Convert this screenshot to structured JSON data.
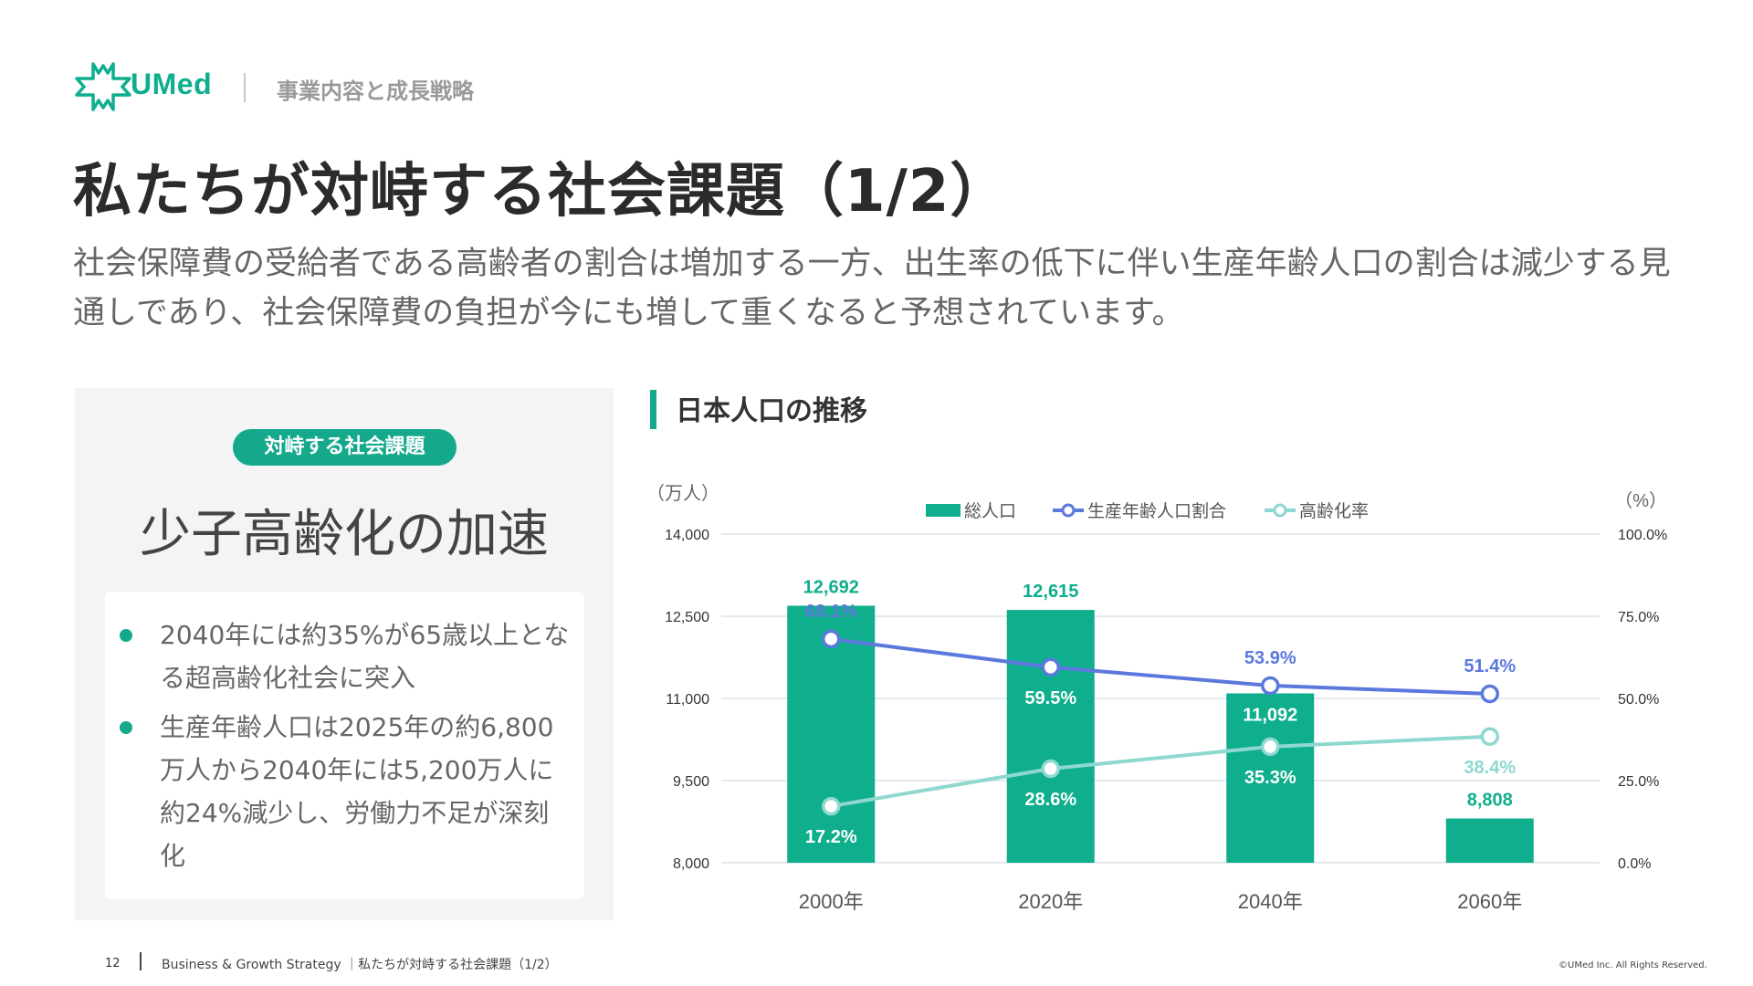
{
  "header": {
    "brand": "UMed",
    "section": "事業内容と成長戦略",
    "logo_icon": "umed-cross-logo-icon",
    "brand_color": "#0eae8f"
  },
  "title": "私たちが対峙する社会課題（1/2）",
  "lead": "社会保障費の受給者である高齢者の割合は増加する一方、出生率の低下に伴い生産年齢人口の割合は減少する見通しであり、社会保障費の負担が今にも増して重くなると予想されています。",
  "panel": {
    "pill": "対峙する社会課題",
    "issue": "少子高齢化の加速",
    "bullets": [
      "2040年には約35%が65歳以上となる超高齢化社会に突入",
      "生産年齢人口は2025年の約6,800万人から2040年には5,200万人に約24%減少し、労働力不足が深刻化"
    ]
  },
  "chart_title": "日本人口の推移",
  "chart_data": {
    "type": "bar",
    "categories": [
      "2000年",
      "2020年",
      "2040年",
      "2060年"
    ],
    "left_unit": "（万人）",
    "right_unit": "（%）",
    "left_ticks": [
      "8,000",
      "9,500",
      "11,000",
      "12,500",
      "14,000"
    ],
    "right_ticks": [
      "0.0%",
      "25.0%",
      "50.0%",
      "75.0%",
      "100.0%"
    ],
    "ylim_left": [
      8000,
      14000
    ],
    "ylim_right": [
      0,
      100
    ],
    "grid": true,
    "legend_position": "top",
    "series": [
      {
        "name": "総人口",
        "kind": "bar",
        "axis": "left",
        "color": "#0fae8c",
        "values": [
          12692,
          12615,
          11092,
          8808
        ],
        "labels": [
          "12,692",
          "12,615",
          "11,092",
          "8,808"
        ]
      },
      {
        "name": "生産年齢人口割合",
        "kind": "line",
        "axis": "right",
        "color": "#5b78dd",
        "values": [
          68.1,
          59.5,
          53.9,
          51.4
        ],
        "labels": [
          "68.1%",
          "59.5%",
          "53.9%",
          "51.4%"
        ]
      },
      {
        "name": "高齢化率",
        "kind": "line",
        "axis": "right",
        "color": "#8ed8d0",
        "values": [
          17.2,
          28.6,
          35.3,
          38.4
        ],
        "labels": [
          "17.2%",
          "28.6%",
          "35.3%",
          "38.4%"
        ]
      }
    ]
  },
  "footer": {
    "page": "12",
    "text": "Business & Growth Strategy ｜私たちが対峙する社会課題（1/2）",
    "copyright": "©UMed Inc. All Rights Reserved."
  }
}
